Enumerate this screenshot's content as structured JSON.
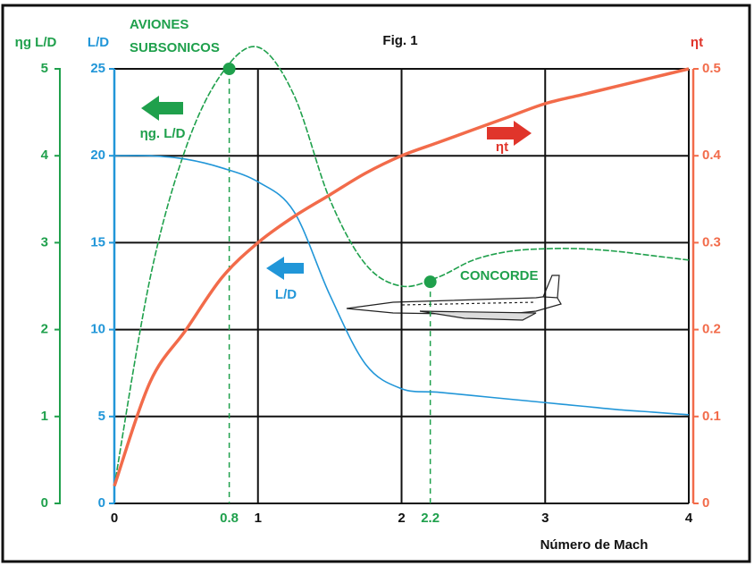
{
  "chart_data": {
    "type": "line",
    "title": "Fig. 1",
    "x_label": "Número de Mach",
    "y_label": "L/D",
    "y2_label": "ηt",
    "y3_label": "ηg L/D",
    "x": [
      0,
      0.25,
      0.5,
      0.75,
      1,
      1.25,
      1.5,
      1.75,
      2,
      2.25,
      2.5,
      2.75,
      3,
      3.25,
      3.5,
      3.75,
      4
    ],
    "xlim": [
      0,
      4
    ],
    "xticks": [
      0,
      1,
      2,
      3,
      4
    ],
    "ylim": [
      0,
      25
    ],
    "yticks": [
      0,
      5,
      10,
      15,
      20,
      25
    ],
    "y2lim": [
      0,
      0.5
    ],
    "y2ticks": [
      0,
      0.1,
      0.2,
      0.3,
      0.4,
      0.5
    ],
    "y3lim": [
      0,
      5
    ],
    "y3ticks": [
      0,
      1,
      2,
      3,
      4,
      5
    ],
    "grid": true,
    "series": [
      {
        "name": "ηg. L/D",
        "color": "#1fa04c",
        "axis": "y3",
        "values": [
          0.2,
          2.6,
          4.1,
          4.95,
          5.25,
          4.7,
          3.5,
          2.75,
          2.5,
          2.6,
          2.8,
          2.9,
          2.93,
          2.93,
          2.9,
          2.85,
          2.8
        ]
      },
      {
        "name": "L/D",
        "color": "#2196d8",
        "values": [
          20,
          20,
          19.8,
          19.3,
          18.5,
          16.8,
          12,
          8,
          6.6,
          6.4,
          6.2,
          6,
          5.8,
          5.6,
          5.4,
          5.25,
          5.1
        ]
      },
      {
        "name": "ηt",
        "color": "#f26b4a",
        "axis": "y2",
        "values": [
          0.02,
          0.14,
          0.2,
          0.26,
          0.3,
          0.33,
          0.355,
          0.38,
          0.4,
          0.415,
          0.43,
          0.445,
          0.46,
          0.47,
          0.48,
          0.49,
          0.5
        ]
      }
    ],
    "reference_points": [
      {
        "x": 0.8,
        "y": 5,
        "axis": "y3",
        "label": [
          "AVIONES",
          "SUBSONICOS"
        ]
      },
      {
        "x": 2.2,
        "y": 2.55,
        "axis": "y3",
        "label": [
          "CONCORDE"
        ]
      }
    ]
  }
}
